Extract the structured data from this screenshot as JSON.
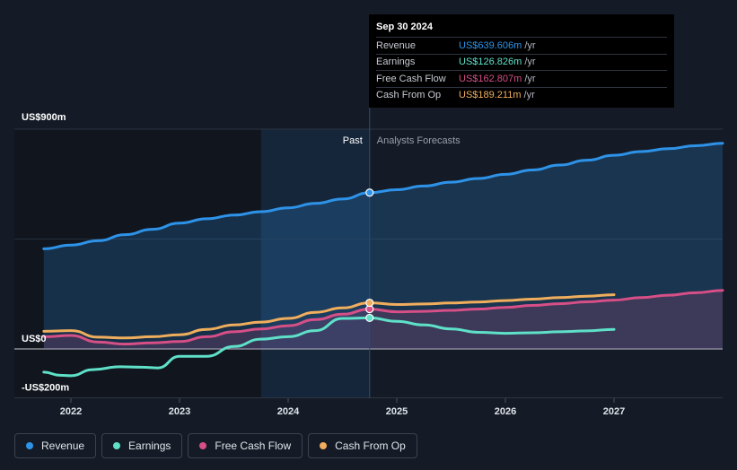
{
  "tooltip": {
    "date": "Sep 30 2024",
    "rows": [
      {
        "name": "Revenue",
        "value": "US$639.606m",
        "unit": "/yr",
        "color": "#2e93e8"
      },
      {
        "name": "Earnings",
        "value": "US$126.826m",
        "unit": "/yr",
        "color": "#5fe0c8"
      },
      {
        "name": "Free Cash Flow",
        "value": "US$162.807m",
        "unit": "/yr",
        "color": "#d64f86"
      },
      {
        "name": "Cash From Op",
        "value": "US$189.211m",
        "unit": "/yr",
        "color": "#f0ae5c"
      }
    ]
  },
  "labels": {
    "past": "Past",
    "forecast": "Analysts Forecasts"
  },
  "legend": [
    {
      "name": "Revenue",
      "color": "#2e93e8"
    },
    {
      "name": "Earnings",
      "color": "#5fe0c8"
    },
    {
      "name": "Free Cash Flow",
      "color": "#d64f86"
    },
    {
      "name": "Cash From Op",
      "color": "#f0ae5c"
    }
  ],
  "chart_data": {
    "type": "line",
    "ylim": [
      -200,
      900
    ],
    "y_tick_labels": [
      {
        "value": 900,
        "label": "US$900m"
      },
      {
        "value": 0,
        "label": "US$0"
      },
      {
        "value": -200,
        "label": "-US$200m"
      }
    ],
    "x_tick_labels": [
      "2022",
      "2023",
      "2024",
      "2025",
      "2026",
      "2027"
    ],
    "x_tick_years": [
      2022,
      2023,
      2024,
      2025,
      2026,
      2027
    ],
    "x_range": [
      2021.5,
      2028.0
    ],
    "past_end": 2024.75,
    "highlight_start": 2023.75,
    "series": [
      {
        "name": "Revenue",
        "color": "#2e93e8",
        "area": true,
        "points": [
          [
            2021.75,
            410
          ],
          [
            2022.0,
            425
          ],
          [
            2022.25,
            443
          ],
          [
            2022.5,
            468
          ],
          [
            2022.75,
            490
          ],
          [
            2023.0,
            515
          ],
          [
            2023.25,
            533
          ],
          [
            2023.5,
            548
          ],
          [
            2023.75,
            562
          ],
          [
            2024.0,
            578
          ],
          [
            2024.25,
            596
          ],
          [
            2024.5,
            614
          ],
          [
            2024.75,
            640
          ],
          [
            2025.0,
            652
          ],
          [
            2025.25,
            667
          ],
          [
            2025.5,
            683
          ],
          [
            2025.75,
            698
          ],
          [
            2026.0,
            715
          ],
          [
            2026.25,
            733
          ],
          [
            2026.5,
            753
          ],
          [
            2026.75,
            773
          ],
          [
            2027.0,
            793
          ],
          [
            2027.25,
            808
          ],
          [
            2027.5,
            820
          ],
          [
            2027.75,
            832
          ],
          [
            2028.0,
            842
          ]
        ]
      },
      {
        "name": "Earnings",
        "color": "#5fe0c8",
        "area": false,
        "points": [
          [
            2021.75,
            -95
          ],
          [
            2021.9,
            -108
          ],
          [
            2022.0,
            -110
          ],
          [
            2022.2,
            -85
          ],
          [
            2022.45,
            -73
          ],
          [
            2022.65,
            -75
          ],
          [
            2022.8,
            -78
          ],
          [
            2023.0,
            -30
          ],
          [
            2023.25,
            -30
          ],
          [
            2023.5,
            10
          ],
          [
            2023.75,
            40
          ],
          [
            2024.0,
            50
          ],
          [
            2024.25,
            75
          ],
          [
            2024.5,
            125
          ],
          [
            2024.75,
            127
          ],
          [
            2025.0,
            113
          ],
          [
            2025.25,
            98
          ],
          [
            2025.5,
            82
          ],
          [
            2025.75,
            68
          ],
          [
            2026.0,
            64
          ],
          [
            2026.25,
            66
          ],
          [
            2026.5,
            70
          ],
          [
            2026.75,
            74
          ],
          [
            2027.0,
            80
          ]
        ]
      },
      {
        "name": "Free Cash Flow",
        "color": "#d64f86",
        "area": true,
        "points": [
          [
            2021.75,
            50
          ],
          [
            2022.0,
            55
          ],
          [
            2022.25,
            28
          ],
          [
            2022.5,
            20
          ],
          [
            2022.75,
            25
          ],
          [
            2023.0,
            30
          ],
          [
            2023.25,
            50
          ],
          [
            2023.5,
            70
          ],
          [
            2023.75,
            82
          ],
          [
            2024.0,
            95
          ],
          [
            2024.25,
            120
          ],
          [
            2024.5,
            142
          ],
          [
            2024.75,
            163
          ],
          [
            2025.0,
            152
          ],
          [
            2025.25,
            154
          ],
          [
            2025.5,
            158
          ],
          [
            2025.75,
            163
          ],
          [
            2026.0,
            170
          ],
          [
            2026.25,
            178
          ],
          [
            2026.5,
            185
          ],
          [
            2026.75,
            193
          ],
          [
            2027.0,
            200
          ],
          [
            2027.25,
            210
          ],
          [
            2027.5,
            220
          ],
          [
            2027.75,
            230
          ],
          [
            2028.0,
            240
          ]
        ]
      },
      {
        "name": "Cash From Op",
        "color": "#f0ae5c",
        "area": false,
        "points": [
          [
            2021.75,
            72
          ],
          [
            2022.0,
            75
          ],
          [
            2022.25,
            48
          ],
          [
            2022.5,
            45
          ],
          [
            2022.75,
            50
          ],
          [
            2023.0,
            58
          ],
          [
            2023.25,
            80
          ],
          [
            2023.5,
            98
          ],
          [
            2023.75,
            110
          ],
          [
            2024.0,
            125
          ],
          [
            2024.25,
            150
          ],
          [
            2024.5,
            168
          ],
          [
            2024.75,
            189
          ],
          [
            2025.0,
            182
          ],
          [
            2025.25,
            184
          ],
          [
            2025.5,
            188
          ],
          [
            2025.75,
            192
          ],
          [
            2026.0,
            198
          ],
          [
            2026.25,
            204
          ],
          [
            2026.5,
            210
          ],
          [
            2026.75,
            216
          ],
          [
            2027.0,
            222
          ]
        ]
      }
    ]
  }
}
